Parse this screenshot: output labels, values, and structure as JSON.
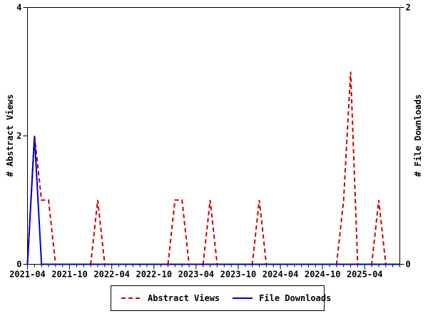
{
  "chart_data": {
    "type": "line",
    "title": "",
    "grid": false,
    "legend_position": "bottom",
    "left_axis": {
      "label": "# Abstract Views",
      "ticks": [
        0,
        2,
        4
      ],
      "range": [
        0,
        4
      ]
    },
    "right_axis": {
      "label": "# File Downloads",
      "ticks": [
        0,
        2
      ],
      "range": [
        0,
        2
      ]
    },
    "x_tick_labels": [
      "2021-04",
      "2021-10",
      "2022-04",
      "2022-10",
      "2023-04",
      "2023-10",
      "2024-04",
      "2024-10",
      "2025-04"
    ],
    "months": [
      "2021-04",
      "2021-05",
      "2021-06",
      "2021-07",
      "2021-08",
      "2021-09",
      "2021-10",
      "2021-11",
      "2021-12",
      "2022-01",
      "2022-02",
      "2022-03",
      "2022-04",
      "2022-05",
      "2022-06",
      "2022-07",
      "2022-08",
      "2022-09",
      "2022-10",
      "2022-11",
      "2022-12",
      "2023-01",
      "2023-02",
      "2023-03",
      "2023-04",
      "2023-05",
      "2023-06",
      "2023-07",
      "2023-08",
      "2023-09",
      "2023-10",
      "2023-11",
      "2023-12",
      "2024-01",
      "2024-02",
      "2024-03",
      "2024-04",
      "2024-05",
      "2024-06",
      "2024-07",
      "2024-08",
      "2024-09",
      "2024-10",
      "2024-11",
      "2024-12",
      "2025-01",
      "2025-02",
      "2025-03",
      "2025-04",
      "2025-05",
      "2025-06",
      "2025-07",
      "2025-08",
      "2025-09"
    ],
    "series": [
      {
        "name": "Abstract Views",
        "axis": "left",
        "color": "#cc0000",
        "style": "dashed",
        "values": [
          0,
          2,
          1,
          1,
          0,
          0,
          0,
          0,
          0,
          0,
          1,
          0,
          0,
          0,
          0,
          0,
          0,
          0,
          0,
          0,
          0,
          1,
          1,
          0,
          0,
          0,
          1,
          0,
          0,
          0,
          0,
          0,
          0,
          1,
          0,
          0,
          0,
          0,
          0,
          0,
          0,
          0,
          0,
          0,
          0,
          1,
          3,
          0,
          0,
          0,
          1,
          0,
          0,
          0
        ]
      },
      {
        "name": "File Downloads",
        "axis": "right",
        "color": "#0000cc",
        "style": "solid",
        "values": [
          0,
          1,
          0,
          0,
          0,
          0,
          0,
          0,
          0,
          0,
          0,
          0,
          0,
          0,
          0,
          0,
          0,
          0,
          0,
          0,
          0,
          0,
          0,
          0,
          0,
          0,
          0,
          0,
          0,
          0,
          0,
          0,
          0,
          0,
          0,
          0,
          0,
          0,
          0,
          0,
          0,
          0,
          0,
          0,
          0,
          0,
          0,
          0,
          0,
          0,
          0,
          0,
          0,
          0
        ]
      }
    ]
  },
  "colors": {
    "frame": "#000000",
    "background": "#ffffff",
    "abstract_views": "#cc0000",
    "file_downloads": "#0000cc"
  }
}
